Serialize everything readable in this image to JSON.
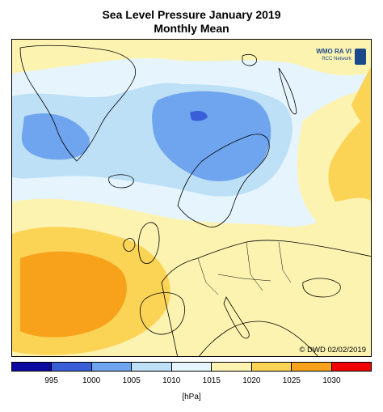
{
  "title_line1": "Sea Level Pressure January 2019",
  "title_line2": "Monthly Mean",
  "logo": {
    "name": "WMO RA VI",
    "subtitle": "RCC Network",
    "icon": "wmo-emblem-icon"
  },
  "copyright": "© DWD 02/02/2019",
  "colorbar": {
    "colors": [
      "#0a0a9e",
      "#3a5ed8",
      "#6fa4ee",
      "#bde0f6",
      "#e6f5fd",
      "#fdf3b0",
      "#fbd456",
      "#f8a21c",
      "#f00000"
    ],
    "ticks": [
      "995",
      "1000",
      "1005",
      "1010",
      "1015",
      "1020",
      "1025",
      "1030"
    ],
    "unit": "[hPa]"
  }
}
